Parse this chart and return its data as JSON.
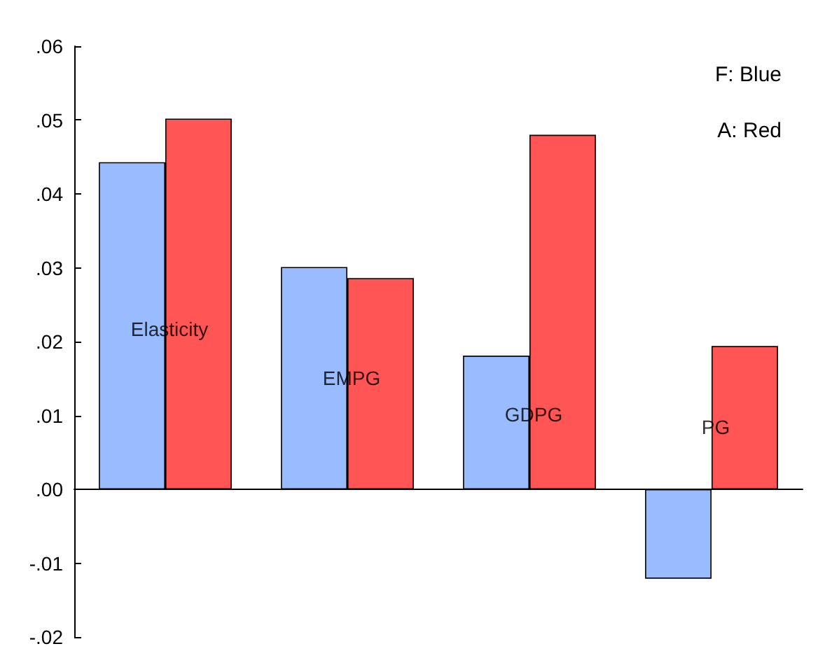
{
  "chart_data": {
    "type": "bar",
    "categories": [
      null,
      null,
      null,
      null
    ],
    "series": [
      {
        "color": "#99bbff",
        "values": [
          0.0443,
          0.0301,
          0.0181,
          -0.0121
        ]
      },
      {
        "color": "#ff5555",
        "values": [
          0.0502,
          0.0286,
          0.048,
          0.0194
        ]
      }
    ],
    "ylim": [
      -0.02,
      0.06
    ],
    "yticks": [
      {
        "value": -0.02,
        "label": "-.02"
      },
      {
        "value": -0.01,
        "label": "-.01"
      },
      {
        "value": 0,
        "label": ".00"
      },
      {
        "value": 0.01,
        "label": ".01"
      },
      {
        "value": 0.02,
        "label": ".02"
      },
      {
        "value": 0.03,
        "label": ".03"
      },
      {
        "value": 0.04,
        "label": ".04"
      },
      {
        "value": 0.05,
        "label": ".05"
      },
      {
        "value": 0.06,
        "label": ".06"
      }
    ],
    "annotations": [
      {
        "text": "Elasticity",
        "y": 0.0217
      },
      {
        "text": "EMPG",
        "y": 0.0151
      },
      {
        "text": "GDPG",
        "y": 0.0101
      },
      {
        "text": "PG",
        "y": 0.0084
      },
      "F: Blue",
      "A: Red"
    ],
    "tick_labels": "y"
  }
}
